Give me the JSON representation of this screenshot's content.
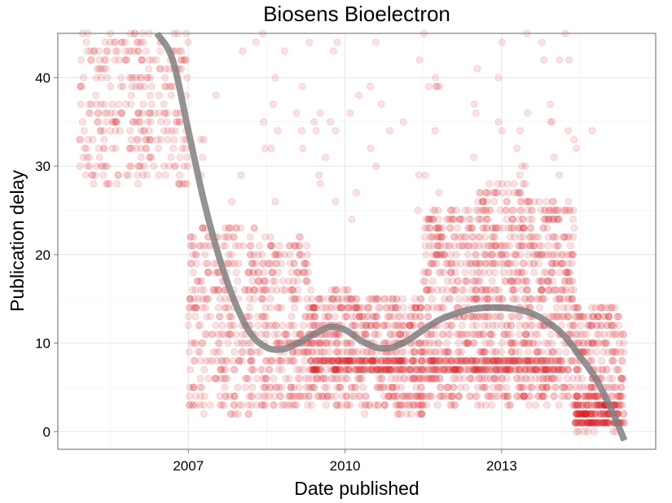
{
  "chart_data": {
    "type": "scatter",
    "title": "Biosens Bioelectron",
    "xlabel": "Date published",
    "ylabel": "Publication delay",
    "x_ticks": [
      "2007",
      "2010",
      "2013"
    ],
    "x_tick_values": [
      2007,
      2010,
      2013
    ],
    "y_ticks": [
      "0",
      "10",
      "20",
      "30",
      "40"
    ],
    "y_tick_values": [
      0,
      10,
      20,
      30,
      40
    ],
    "xlim": [
      2004.5,
      2015.95
    ],
    "ylim": [
      -2,
      45
    ],
    "grid": true,
    "point_color": "#e41a1c",
    "point_alpha": 0.13,
    "smooth_color": "#808080",
    "smooth_curve": {
      "x": [
        2006.4,
        2006.7,
        2007.0,
        2007.3,
        2007.6,
        2007.9,
        2008.2,
        2008.5,
        2008.8,
        2009.1,
        2009.4,
        2009.7,
        2010.0,
        2010.3,
        2010.6,
        2010.9,
        2011.2,
        2011.5,
        2011.8,
        2012.1,
        2012.4,
        2012.7,
        2013.0,
        2013.3,
        2013.6,
        2013.9,
        2014.2,
        2014.5,
        2014.8,
        2015.1,
        2015.35
      ],
      "y": [
        45.0,
        42.0,
        34.0,
        26.0,
        19.5,
        14.5,
        11.0,
        9.5,
        9.3,
        10.0,
        11.0,
        11.8,
        11.5,
        10.3,
        9.5,
        9.5,
        10.3,
        11.5,
        12.6,
        13.3,
        13.8,
        14.0,
        14.0,
        13.8,
        13.3,
        12.3,
        10.8,
        8.5,
        6.0,
        2.5,
        -1.0
      ]
    },
    "point_density": [
      {
        "x": [
          2004.9,
          2006.6
        ],
        "y": [
          28,
          45
        ],
        "n": 240
      },
      {
        "x": [
          2006.6,
          2007.0
        ],
        "y": [
          28,
          45
        ],
        "n": 60
      },
      {
        "x": [
          2007.0,
          2008.3
        ],
        "y": [
          2,
          24
        ],
        "n": 300
      },
      {
        "x": [
          2008.3,
          2009.3
        ],
        "y": [
          3,
          22
        ],
        "n": 260
      },
      {
        "x": [
          2009.3,
          2010.3
        ],
        "y": [
          3,
          16
        ],
        "n": 260
      },
      {
        "x": [
          2010.3,
          2011.5
        ],
        "y": [
          2,
          15
        ],
        "n": 320
      },
      {
        "x": [
          2011.5,
          2012.5
        ],
        "y": [
          3,
          25
        ],
        "n": 340
      },
      {
        "x": [
          2012.5,
          2013.5
        ],
        "y": [
          3,
          28
        ],
        "n": 420
      },
      {
        "x": [
          2013.5,
          2014.4
        ],
        "y": [
          3,
          26
        ],
        "n": 320
      },
      {
        "x": [
          2014.4,
          2015.35
        ],
        "y": [
          0,
          14
        ],
        "n": 280
      },
      {
        "x": [
          2007.2,
          2014.8
        ],
        "y": [
          24,
          45
        ],
        "n": 90
      },
      {
        "x": [
          2009.3,
          2014.2
        ],
        "y": [
          6.5,
          8.5
        ],
        "n": 360
      },
      {
        "x": [
          2014.4,
          2015.3
        ],
        "y": [
          0.5,
          4
        ],
        "n": 160
      }
    ]
  }
}
